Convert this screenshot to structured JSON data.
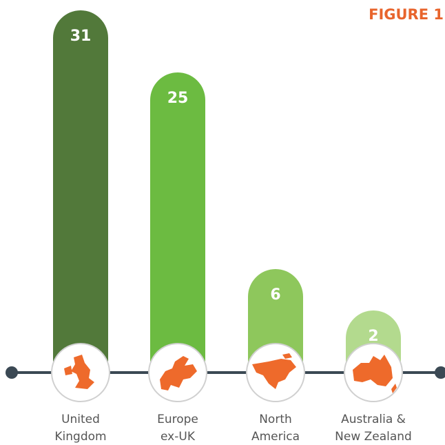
{
  "chart_data": {
    "type": "bar",
    "title": "FIGURE 1",
    "categories": [
      [
        "United",
        "Kingdom"
      ],
      [
        "Europe",
        "ex-UK"
      ],
      [
        "North",
        "America"
      ],
      [
        "Australia &",
        "New Zealand"
      ]
    ],
    "values": [
      31,
      25,
      6,
      2
    ],
    "colors": [
      "#52793a",
      "#6cbb41",
      "#8ec75c",
      "#b3da8e"
    ]
  }
}
